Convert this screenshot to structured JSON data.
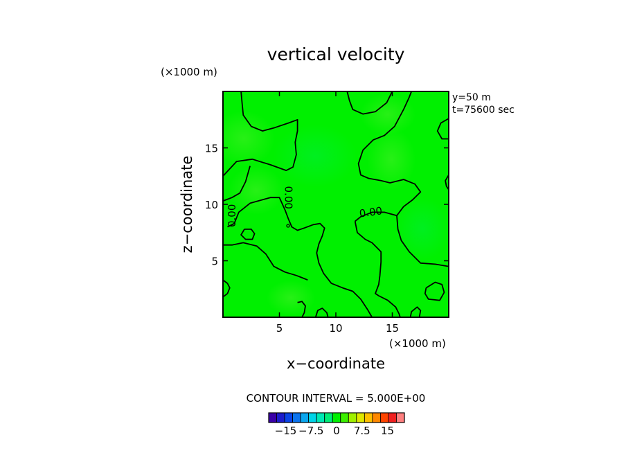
{
  "chart_data": {
    "type": "contour",
    "title": "vertical velocity",
    "xlabel": "x−coordinate",
    "ylabel": "z−coordinate",
    "x_unit_label": "(×1000 m)",
    "y_unit_label": "(×1000 m)",
    "xlim": [
      0,
      20
    ],
    "ylim": [
      0,
      20
    ],
    "x_ticks": [
      5,
      10,
      15
    ],
    "y_ticks": [
      5,
      10,
      15
    ],
    "x_tick_labels": [
      "5",
      "10",
      "15"
    ],
    "y_tick_labels": [
      "5",
      "10",
      "15"
    ],
    "info_lines": [
      "y=50 m",
      "t=75600 sec"
    ],
    "contour_interval_text": "CONTOUR INTERVAL = 5.000E+00",
    "contour_labels": [
      {
        "text": "0.00",
        "x": 0.8,
        "z": 9.0,
        "angle": -90
      },
      {
        "text": "0.00",
        "x": 5.8,
        "z": 10.6,
        "angle": 90
      },
      {
        "text": "0.00",
        "x": 13.1,
        "z": 9.3,
        "angle": -8
      }
    ],
    "field_color": "#00f000",
    "contour_lines": [
      [
        [
          0,
          12.5
        ],
        [
          1.2,
          13.8
        ],
        [
          2.6,
          14.0
        ],
        [
          4.2,
          13.5
        ],
        [
          5.6,
          13.0
        ],
        [
          6.2,
          13.3
        ],
        [
          6.5,
          14.4
        ],
        [
          6.4,
          15.5
        ],
        [
          6.6,
          16.5
        ],
        [
          6.6,
          17.5
        ],
        [
          5.8,
          17.2
        ],
        [
          4.6,
          16.8
        ],
        [
          3.5,
          16.5
        ],
        [
          2.5,
          16.9
        ],
        [
          1.8,
          17.9
        ],
        [
          1.7,
          18.9
        ],
        [
          1.6,
          20
        ]
      ],
      [
        [
          0,
          10.3
        ],
        [
          0.8,
          10.6
        ],
        [
          1.5,
          11.0
        ],
        [
          2.0,
          12.0
        ],
        [
          2.4,
          13.4
        ]
      ],
      [
        [
          0.4,
          8.0
        ],
        [
          1.0,
          8.3
        ],
        [
          1.4,
          9.3
        ],
        [
          2.4,
          10.1
        ],
        [
          4.2,
          10.6
        ],
        [
          5.0,
          10.6
        ],
        [
          5.5,
          9.5
        ],
        [
          5.8,
          8.7
        ],
        [
          6.1,
          8.0
        ],
        [
          6.6,
          7.7
        ],
        [
          7.2,
          7.9
        ],
        [
          8.0,
          8.2
        ],
        [
          8.6,
          8.3
        ],
        [
          9.0,
          7.9
        ],
        [
          8.8,
          7.2
        ],
        [
          8.5,
          6.5
        ],
        [
          8.3,
          5.7
        ],
        [
          8.5,
          4.8
        ],
        [
          8.9,
          3.9
        ],
        [
          9.6,
          3.0
        ],
        [
          10.6,
          2.6
        ],
        [
          11.5,
          2.3
        ],
        [
          12.2,
          1.6
        ],
        [
          12.8,
          0.7
        ],
        [
          13.2,
          0
        ]
      ],
      [
        [
          0,
          6.4
        ],
        [
          0.8,
          6.4
        ],
        [
          1.8,
          6.6
        ],
        [
          3.0,
          6.3
        ],
        [
          3.8,
          5.6
        ],
        [
          4.5,
          4.5
        ],
        [
          5.5,
          4.0
        ],
        [
          6.5,
          3.7
        ],
        [
          7.0,
          3.5
        ],
        [
          7.5,
          3.3
        ]
      ],
      [
        [
          11.7,
          8.5
        ],
        [
          12.2,
          8.9
        ],
        [
          13.2,
          9.3
        ],
        [
          14.3,
          9.3
        ],
        [
          15.4,
          9.0
        ],
        [
          16.0,
          9.8
        ],
        [
          16.8,
          10.4
        ],
        [
          17.5,
          11.1
        ],
        [
          17.0,
          11.8
        ],
        [
          16.0,
          12.2
        ],
        [
          14.8,
          11.9
        ],
        [
          14.0,
          12.1
        ],
        [
          12.9,
          12.3
        ],
        [
          12.2,
          12.6
        ],
        [
          12.0,
          13.6
        ],
        [
          12.4,
          14.8
        ],
        [
          13.3,
          15.7
        ],
        [
          14.3,
          16.1
        ],
        [
          15.2,
          16.9
        ],
        [
          16.0,
          18.4
        ],
        [
          16.5,
          19.5
        ],
        [
          16.7,
          20
        ]
      ],
      [
        [
          11.7,
          8.5
        ],
        [
          11.9,
          7.5
        ],
        [
          12.6,
          6.9
        ],
        [
          13.2,
          6.6
        ],
        [
          14.0,
          5.8
        ],
        [
          14.0,
          4.9
        ],
        [
          13.9,
          3.7
        ],
        [
          13.8,
          2.9
        ],
        [
          13.5,
          2.1
        ],
        [
          13.8,
          1.9
        ],
        [
          14.6,
          1.5
        ],
        [
          15.3,
          0.9
        ],
        [
          15.6,
          0.3
        ],
        [
          15.7,
          0
        ]
      ],
      [
        [
          20,
          4.5
        ],
        [
          18.8,
          4.7
        ],
        [
          17.5,
          4.8
        ],
        [
          16.5,
          5.8
        ],
        [
          15.8,
          6.8
        ],
        [
          15.5,
          7.8
        ],
        [
          15.4,
          9.0
        ]
      ],
      [
        [
          11.0,
          20
        ],
        [
          11.2,
          19.2
        ],
        [
          11.5,
          18.4
        ],
        [
          12.4,
          18.0
        ],
        [
          13.5,
          18.2
        ],
        [
          14.5,
          19.0
        ],
        [
          15.0,
          20
        ]
      ],
      [
        [
          1.9,
          7.8
        ],
        [
          2.5,
          7.8
        ],
        [
          2.8,
          7.4
        ],
        [
          2.6,
          6.9
        ],
        [
          2.0,
          6.9
        ],
        [
          1.6,
          7.3
        ],
        [
          1.9,
          7.8
        ]
      ],
      [
        [
          18.0,
          2.6
        ],
        [
          18.8,
          3.1
        ],
        [
          19.4,
          2.9
        ],
        [
          19.6,
          2.2
        ],
        [
          19.2,
          1.5
        ],
        [
          18.2,
          1.6
        ],
        [
          17.9,
          2.1
        ],
        [
          18.0,
          2.6
        ]
      ],
      [
        [
          6.6,
          1.3
        ],
        [
          7.0,
          1.4
        ],
        [
          7.3,
          1.0
        ],
        [
          7.2,
          0.4
        ],
        [
          7.0,
          0
        ]
      ],
      [
        [
          8.2,
          0
        ],
        [
          8.4,
          0.6
        ],
        [
          8.8,
          0.8
        ],
        [
          9.2,
          0.4
        ],
        [
          9.3,
          0
        ]
      ],
      [
        [
          0,
          3.3
        ],
        [
          0.4,
          3.0
        ],
        [
          0.6,
          2.6
        ],
        [
          0.4,
          2.1
        ],
        [
          0,
          1.8
        ]
      ],
      [
        [
          20,
          17.6
        ],
        [
          19.3,
          17.2
        ],
        [
          19.0,
          16.5
        ],
        [
          19.4,
          15.8
        ],
        [
          20,
          15.8
        ]
      ],
      [
        [
          20,
          12.6
        ],
        [
          19.7,
          12.1
        ],
        [
          19.8,
          11.6
        ],
        [
          20,
          11.3
        ]
      ],
      [
        [
          16.6,
          0
        ],
        [
          16.7,
          0.5
        ],
        [
          17.2,
          0.9
        ],
        [
          17.5,
          0.6
        ],
        [
          17.4,
          0
        ]
      ]
    ],
    "colorbar": {
      "labels": [
        "−15",
        "−7.5",
        "0",
        "7.5",
        "15"
      ],
      "label_values": [
        -15,
        -7.5,
        0,
        7.5,
        15
      ],
      "range": [
        -20,
        20
      ],
      "colors": [
        "#3a00a8",
        "#1c1ccc",
        "#0a44e6",
        "#0c74ee",
        "#0aa6ee",
        "#00d4e8",
        "#00e8b4",
        "#00ec78",
        "#00f000",
        "#3cf000",
        "#a0f000",
        "#e0e800",
        "#ffc000",
        "#ff8800",
        "#ff4400",
        "#f02020",
        "#ff8080"
      ]
    }
  }
}
